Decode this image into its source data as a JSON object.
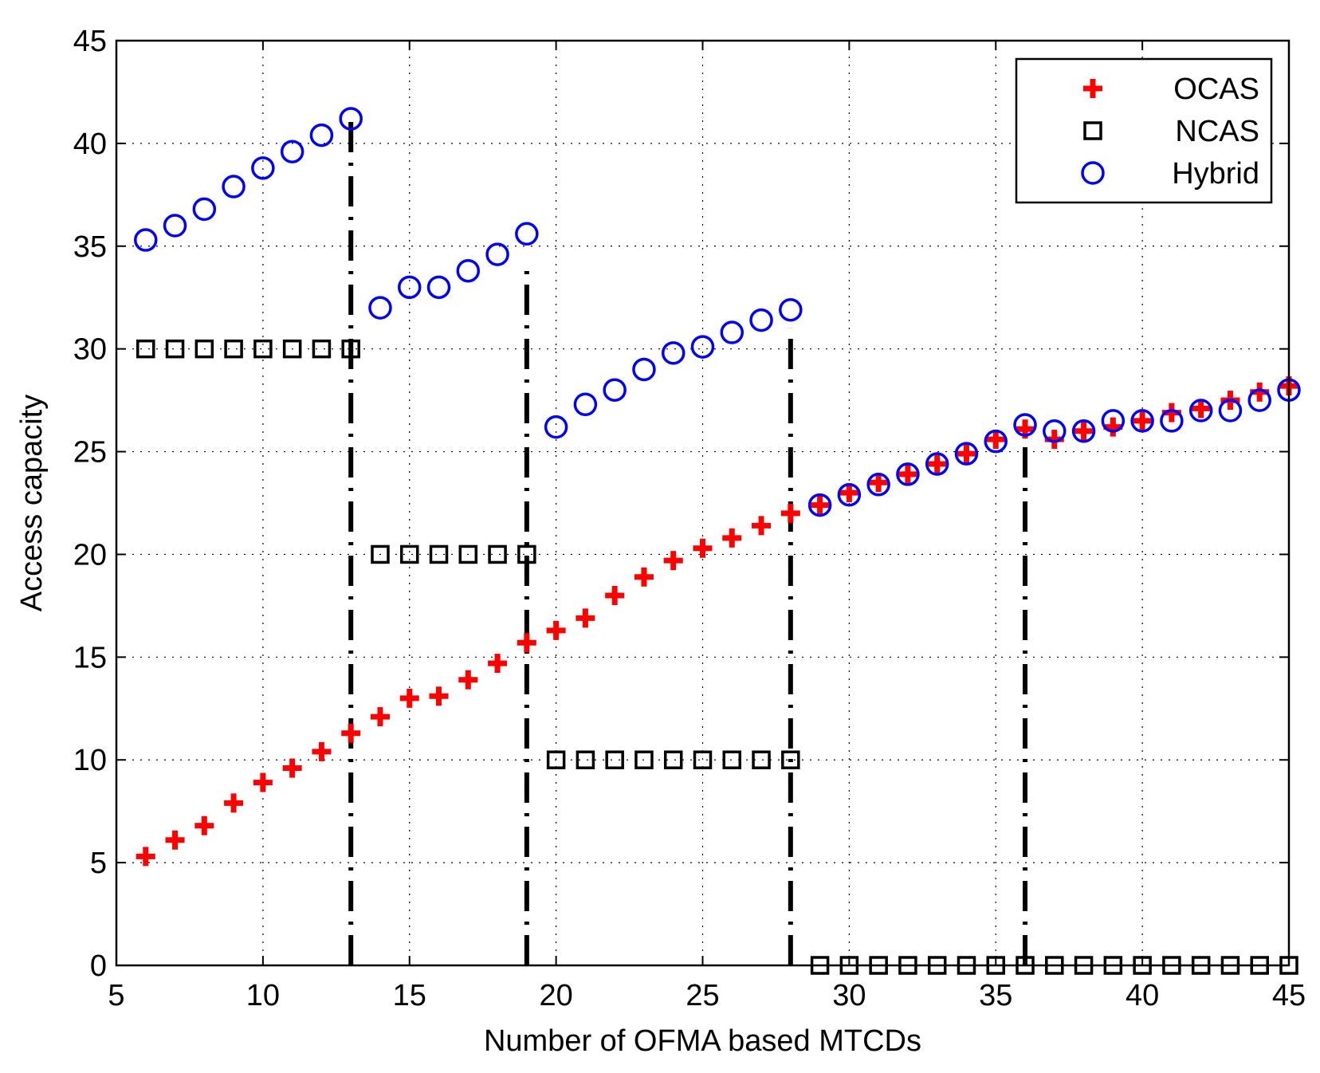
{
  "chart_data": {
    "type": "scatter",
    "title": "",
    "xlabel": "Number of OFMA based MTCDs",
    "ylabel": "Access capacity",
    "xlim": [
      5,
      45
    ],
    "ylim": [
      0,
      45
    ],
    "xticks": [
      5,
      10,
      15,
      20,
      25,
      30,
      35,
      40,
      45
    ],
    "yticks": [
      0,
      5,
      10,
      15,
      20,
      25,
      30,
      35,
      40,
      45
    ],
    "grid": true,
    "legend_position": "top-right",
    "series": [
      {
        "name": "OCAS",
        "marker": "plus",
        "color": "#ff0000",
        "x": [
          6,
          7,
          8,
          9,
          10,
          11,
          12,
          13,
          14,
          15,
          16,
          17,
          18,
          19,
          20,
          21,
          22,
          23,
          24,
          25,
          26,
          27,
          28,
          29,
          30,
          31,
          32,
          33,
          34,
          35,
          36,
          37,
          38,
          39,
          40,
          41,
          42,
          43,
          44,
          45
        ],
        "values": [
          5.3,
          6.1,
          6.8,
          7.9,
          8.9,
          9.6,
          10.4,
          11.3,
          12.1,
          13.0,
          13.1,
          13.9,
          14.7,
          15.7,
          16.3,
          16.9,
          18.0,
          18.9,
          19.7,
          20.3,
          20.8,
          21.4,
          22.0,
          22.4,
          23.0,
          23.5,
          23.9,
          24.4,
          24.9,
          25.6,
          26.1,
          25.6,
          26.0,
          26.2,
          26.5,
          26.9,
          27.1,
          27.5,
          27.9,
          28.2
        ]
      },
      {
        "name": "NCAS",
        "marker": "square",
        "color": "#000000",
        "x": [
          6,
          7,
          8,
          9,
          10,
          11,
          12,
          13,
          14,
          15,
          16,
          17,
          18,
          19,
          20,
          21,
          22,
          23,
          24,
          25,
          26,
          27,
          28,
          29,
          30,
          31,
          32,
          33,
          34,
          35,
          36,
          37,
          38,
          39,
          40,
          41,
          42,
          43,
          44,
          45
        ],
        "values": [
          30,
          30,
          30,
          30,
          30,
          30,
          30,
          30,
          20,
          20,
          20,
          20,
          20,
          20,
          10,
          10,
          10,
          10,
          10,
          10,
          10,
          10,
          10,
          0,
          0,
          0,
          0,
          0,
          0,
          0,
          0,
          0,
          0,
          0,
          0,
          0,
          0,
          0,
          0,
          0
        ]
      },
      {
        "name": "Hybrid",
        "marker": "circle",
        "color": "#0000ff",
        "x": [
          6,
          7,
          8,
          9,
          10,
          11,
          12,
          13,
          14,
          15,
          16,
          17,
          18,
          19,
          20,
          21,
          22,
          23,
          24,
          25,
          26,
          27,
          28,
          29,
          30,
          31,
          32,
          33,
          34,
          35,
          36,
          37,
          38,
          39,
          40,
          41,
          42,
          43,
          44,
          45
        ],
        "values": [
          35.3,
          36.0,
          36.8,
          37.9,
          38.8,
          39.6,
          40.4,
          41.2,
          32.0,
          33.0,
          33.0,
          33.8,
          34.6,
          35.6,
          26.2,
          27.3,
          28.0,
          29.0,
          29.8,
          30.1,
          30.8,
          31.4,
          31.9,
          22.4,
          22.9,
          23.4,
          23.9,
          24.4,
          24.9,
          25.5,
          26.3,
          26.0,
          26.0,
          26.5,
          26.5,
          26.5,
          27.0,
          27.0,
          27.5,
          28.0
        ]
      }
    ],
    "vertical_lines": [
      {
        "x": 13,
        "y_from": 0,
        "y_to": 41.2,
        "style": "dash-dot"
      },
      {
        "x": 19,
        "y_from": 0,
        "y_to": 34.2,
        "style": "dash-dot"
      },
      {
        "x": 28,
        "y_from": 0,
        "y_to": 31.0,
        "style": "dash-dot"
      },
      {
        "x": 36,
        "y_from": 0,
        "y_to": 25.8,
        "style": "dash-dot"
      }
    ]
  }
}
